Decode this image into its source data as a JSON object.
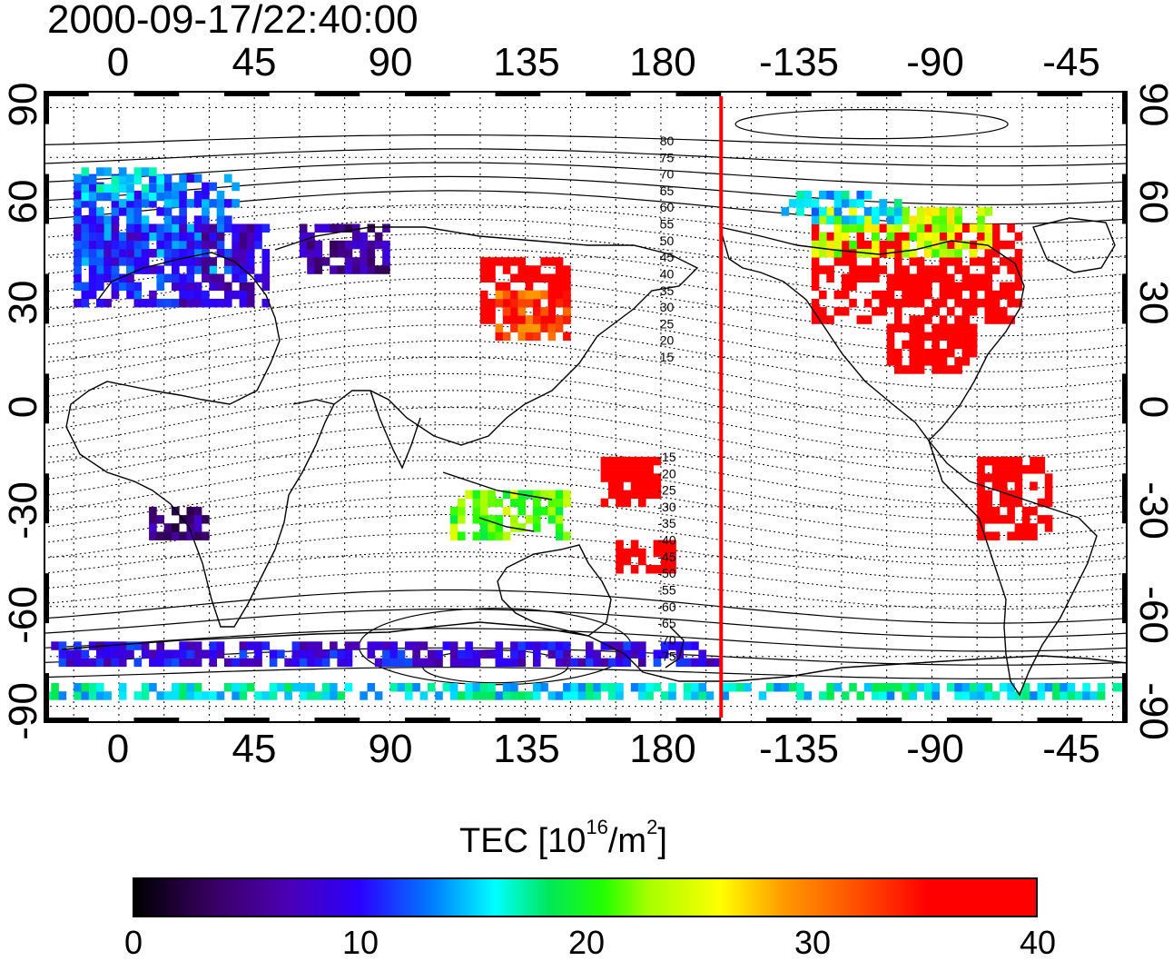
{
  "timestamp": "2000-09-17/22:40:00",
  "longitude_labels": [
    "0",
    "45",
    "90",
    "135",
    "180",
    "-135",
    "-90",
    "-45"
  ],
  "latitude_labels": [
    "90",
    "60",
    "30",
    "0",
    "-30",
    "-60",
    "-90"
  ],
  "contour_labels": [
    "80",
    "75",
    "70",
    "65",
    "60",
    "55",
    "50",
    "45",
    "40",
    "35",
    "30",
    "25",
    "20",
    "15",
    "-15",
    "-20",
    "-25",
    "-30",
    "-35",
    "-40",
    "-45",
    "-50",
    "-55",
    "-60",
    "-65",
    "-70",
    "-75"
  ],
  "colorbar": {
    "title_prefix": "TEC  [10",
    "title_exp1": "16",
    "title_mid": "/m",
    "title_exp2": "2",
    "title_suffix": "]",
    "tick_labels": [
      "0",
      "10",
      "20",
      "30",
      "40"
    ],
    "range": [
      0,
      40
    ]
  },
  "map": {
    "lon_range": [
      -25,
      335
    ],
    "lat_range": [
      -95,
      95
    ],
    "terminator_lon": 200,
    "terminator_color": "#ff0000"
  },
  "tec_regions": [
    {
      "lon": [
        -15,
        40
      ],
      "lat": [
        40,
        70
      ],
      "tec": 12
    },
    {
      "lon": [
        -15,
        25
      ],
      "lat": [
        30,
        55
      ],
      "tec": 10
    },
    {
      "lon": [
        20,
        50
      ],
      "lat": [
        30,
        55
      ],
      "tec": 8
    },
    {
      "lon": [
        -15,
        15
      ],
      "lat": [
        62,
        72
      ],
      "tec": 15
    },
    {
      "lon": [
        60,
        90
      ],
      "lat": [
        40,
        55
      ],
      "tec": 6
    },
    {
      "lon": [
        120,
        150
      ],
      "lat": [
        25,
        45
      ],
      "tec": 38
    },
    {
      "lon": [
        125,
        150
      ],
      "lat": [
        20,
        35
      ],
      "tec": 32
    },
    {
      "lon": [
        230,
        300
      ],
      "lat": [
        25,
        55
      ],
      "tec": 38
    },
    {
      "lon": [
        230,
        290
      ],
      "lat": [
        45,
        60
      ],
      "tec": 24
    },
    {
      "lon": [
        220,
        260
      ],
      "lat": [
        55,
        65
      ],
      "tec": 15
    },
    {
      "lon": [
        255,
        285
      ],
      "lat": [
        10,
        25
      ],
      "tec": 38
    },
    {
      "lon": [
        285,
        310
      ],
      "lat": [
        -40,
        -15
      ],
      "tec": 38
    },
    {
      "lon": [
        160,
        180
      ],
      "lat": [
        -30,
        -15
      ],
      "tec": 38
    },
    {
      "lon": [
        165,
        185
      ],
      "lat": [
        -50,
        -40
      ],
      "tec": 38
    },
    {
      "lon": [
        110,
        150
      ],
      "lat": [
        -40,
        -25
      ],
      "tec": 22
    },
    {
      "lon": [
        10,
        30
      ],
      "lat": [
        -40,
        -30
      ],
      "tec": 5
    },
    {
      "lon": [
        -25,
        335
      ],
      "lat": [
        -88,
        -84
      ],
      "tec": 16
    },
    {
      "lon": [
        -25,
        200
      ],
      "lat": [
        -78,
        -72
      ],
      "tec": 9
    }
  ]
}
